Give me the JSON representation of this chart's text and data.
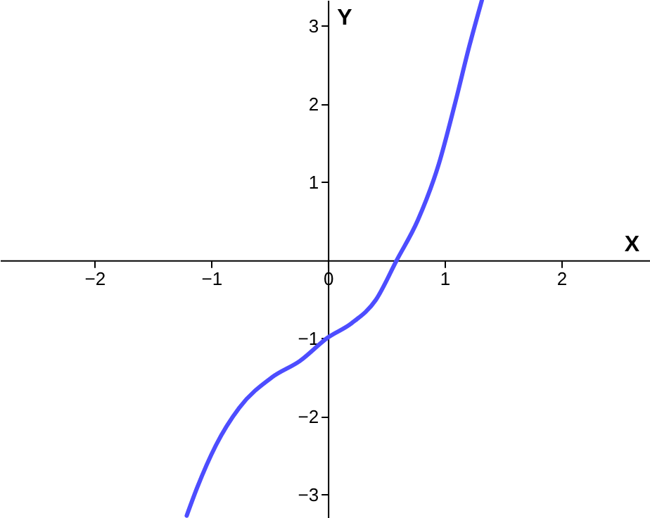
{
  "chart_data": {
    "type": "line",
    "xlabel": "X",
    "ylabel": "Y",
    "xlim": [
      -2.81,
      2.76
    ],
    "ylim": [
      -3.3,
      3.33
    ],
    "xticks": [
      -2,
      -1,
      0,
      1,
      2
    ],
    "yticks": [
      -3,
      -2,
      -1,
      1,
      2,
      3
    ],
    "grid": false,
    "series": [
      {
        "color": "#4d4dff",
        "x": [
          -1.21,
          -1.12,
          -0.96,
          -0.76,
          -0.48,
          -0.24,
          0,
          0.2,
          0.41,
          0.59,
          0.77,
          0.95,
          1.09,
          1.21,
          1.32
        ],
        "values": [
          -3.27,
          -2.91,
          -2.37,
          -1.89,
          -1.5,
          -1.29,
          -0.99,
          -0.81,
          -0.51,
          0,
          0.51,
          1.23,
          2.01,
          2.73,
          3.33
        ]
      }
    ]
  }
}
